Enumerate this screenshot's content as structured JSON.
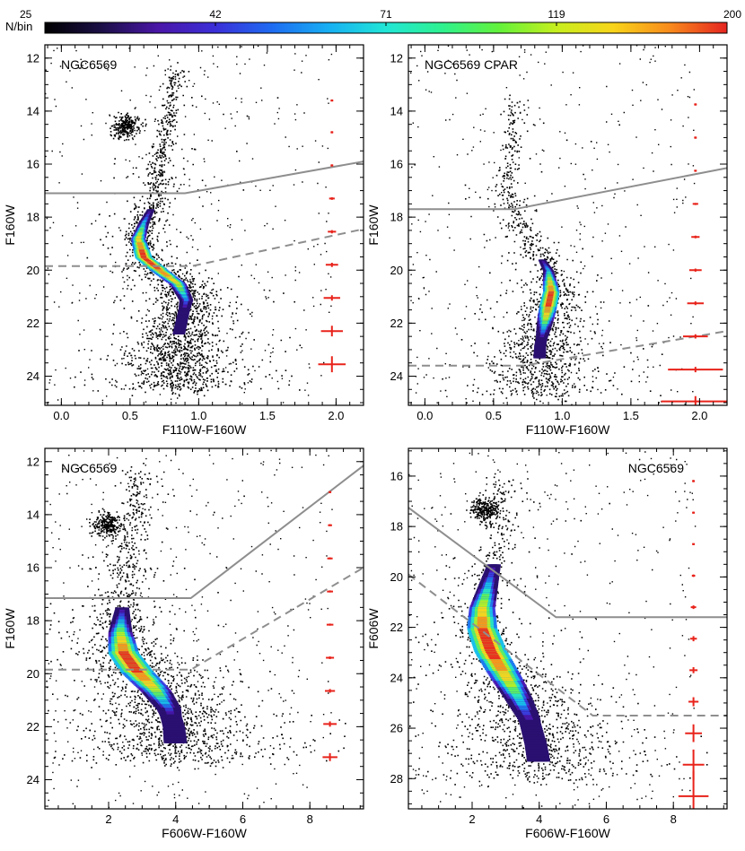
{
  "colorbar": {
    "label": "N/bin",
    "ticks": [
      "25",
      "42",
      "71",
      "119",
      "200"
    ],
    "stops": [
      "#000000",
      "#1b0f46",
      "#4a16a8",
      "#3b2fd8",
      "#1e6cf2",
      "#17b0f3",
      "#21e6d6",
      "#2ef28e",
      "#64f23a",
      "#c7ef1e",
      "#f8d41a",
      "#f88a1c",
      "#e52420"
    ]
  },
  "colors": {
    "points": "#000000",
    "solid_line": "#8e8e8e",
    "dashed_line": "#8e8e8e",
    "error_bars": "#e8231b"
  },
  "chart_data": [
    {
      "type": "scatter",
      "title": "NGC6569",
      "xlabel": "F110W-F160W",
      "ylabel": "F160W",
      "xlim": [
        -0.12,
        2.2
      ],
      "ylim": [
        25.1,
        11.5
      ],
      "xticks": [
        0.0,
        0.5,
        1.0,
        1.5,
        2.0
      ],
      "xtick_labels": [
        "0.0",
        "0.5",
        "1.0",
        "1.5",
        "2.0"
      ],
      "yticks": [
        12,
        14,
        16,
        18,
        20,
        22,
        24
      ],
      "ytick_labels": [
        "12",
        "14",
        "16",
        "18",
        "20",
        "22",
        "24"
      ],
      "ridge": [
        [
          0.84,
          12.4
        ],
        [
          0.8,
          13.5
        ],
        [
          0.75,
          14.9
        ],
        [
          0.72,
          15.8
        ],
        [
          0.7,
          16.8
        ],
        [
          0.66,
          17.6
        ],
        [
          0.6,
          18.2
        ],
        [
          0.56,
          18.8
        ],
        [
          0.6,
          19.5
        ],
        [
          0.72,
          20.0
        ],
        [
          0.85,
          20.5
        ],
        [
          0.91,
          21.1
        ],
        [
          0.88,
          21.8
        ],
        [
          0.85,
          22.5
        ],
        [
          0.84,
          23.5
        ],
        [
          0.85,
          24.5
        ]
      ],
      "density_band": [
        17.7,
        22.4
      ],
      "clump": [
        0.47,
        14.55
      ],
      "solid_line": [
        [
          -0.12,
          17.1
        ],
        [
          0.9,
          17.1
        ],
        [
          2.2,
          15.9
        ]
      ],
      "dashed_line": [
        [
          -0.12,
          19.85
        ],
        [
          0.95,
          19.85
        ],
        [
          2.2,
          18.45
        ]
      ],
      "errors": {
        "x": 1.97,
        "y": [
          13.6,
          14.8,
          16.05,
          17.3,
          18.55,
          19.8,
          21.05,
          22.3,
          23.55
        ],
        "xerr": [
          0.004,
          0.006,
          0.01,
          0.02,
          0.03,
          0.045,
          0.06,
          0.08,
          0.1
        ],
        "yerr": [
          0.02,
          0.02,
          0.03,
          0.05,
          0.06,
          0.08,
          0.1,
          0.2,
          0.3
        ]
      }
    },
    {
      "type": "scatter",
      "title": "NGC6569 CPAR",
      "xlabel": "F110W-F160W",
      "ylabel": "F160W",
      "xlim": [
        -0.12,
        2.2
      ],
      "ylim": [
        25.1,
        11.5
      ],
      "xticks": [
        0.0,
        0.5,
        1.0,
        1.5,
        2.0
      ],
      "xtick_labels": [
        "0.0",
        "0.5",
        "1.0",
        "1.5",
        "2.0"
      ],
      "yticks": [
        12,
        14,
        16,
        18,
        20,
        22,
        24
      ],
      "ytick_labels": [
        "12",
        "14",
        "16",
        "18",
        "20",
        "22",
        "24"
      ],
      "ridge": [
        [
          0.66,
          13.5
        ],
        [
          0.63,
          15.2
        ],
        [
          0.6,
          16.8
        ],
        [
          0.63,
          17.6
        ],
        [
          0.72,
          18.5
        ],
        [
          0.82,
          19.3
        ],
        [
          0.9,
          20.0
        ],
        [
          0.92,
          20.8
        ],
        [
          0.88,
          21.8
        ],
        [
          0.84,
          22.8
        ],
        [
          0.83,
          23.8
        ],
        [
          0.83,
          24.7
        ]
      ],
      "density_band": [
        19.6,
        23.3
      ],
      "clump": null,
      "solid_line": [
        [
          -0.12,
          17.7
        ],
        [
          0.65,
          17.7
        ],
        [
          2.2,
          16.15
        ]
      ],
      "dashed_line": [
        [
          -0.12,
          23.6
        ],
        [
          0.72,
          23.6
        ],
        [
          2.2,
          22.3
        ]
      ],
      "errors": {
        "x": 1.97,
        "y": [
          13.75,
          15.0,
          16.25,
          17.5,
          18.75,
          20.0,
          21.25,
          22.5,
          23.75,
          24.95
        ],
        "xerr": [
          0.004,
          0.006,
          0.01,
          0.02,
          0.03,
          0.045,
          0.06,
          0.09,
          0.2,
          0.25
        ],
        "yerr": [
          0.02,
          0.02,
          0.03,
          0.04,
          0.05,
          0.06,
          0.07,
          0.08,
          0.1,
          0.2
        ]
      }
    },
    {
      "type": "scatter",
      "title": "NGC6569",
      "xlabel": "F606W-F160W",
      "ylabel": "F160W",
      "xlim": [
        0.1,
        9.6
      ],
      "ylim": [
        25.1,
        11.5
      ],
      "xticks": [
        2,
        4,
        6,
        8
      ],
      "xtick_labels": [
        "2",
        "4",
        "6",
        "8"
      ],
      "yticks": [
        12,
        14,
        16,
        18,
        20,
        22,
        24
      ],
      "ytick_labels": [
        "12",
        "14",
        "16",
        "18",
        "20",
        "22",
        "24"
      ],
      "ridge": [
        [
          3.0,
          12.3
        ],
        [
          2.8,
          13.8
        ],
        [
          2.6,
          15.2
        ],
        [
          2.5,
          16.4
        ],
        [
          2.4,
          17.6
        ],
        [
          2.35,
          18.4
        ],
        [
          2.45,
          19.2
        ],
        [
          2.85,
          19.9
        ],
        [
          3.4,
          20.6
        ],
        [
          3.8,
          21.3
        ],
        [
          3.95,
          22.0
        ],
        [
          4.0,
          22.7
        ],
        [
          4.0,
          23.3
        ]
      ],
      "density_band": [
        17.5,
        22.6
      ],
      "clump": [
        1.95,
        14.35
      ],
      "solid_line": [
        [
          0.1,
          17.15
        ],
        [
          4.45,
          17.15
        ],
        [
          9.6,
          12.15
        ]
      ],
      "dashed_line": [
        [
          0.1,
          19.85
        ],
        [
          4.45,
          19.85
        ],
        [
          9.6,
          16.0
        ]
      ],
      "errors": {
        "x": 8.6,
        "y": [
          13.15,
          14.4,
          15.65,
          16.9,
          18.15,
          19.4,
          20.65,
          21.9,
          23.15
        ],
        "xerr": [
          0.02,
          0.06,
          0.08,
          0.09,
          0.1,
          0.12,
          0.15,
          0.2,
          0.22
        ],
        "yerr": [
          0.02,
          0.02,
          0.02,
          0.03,
          0.04,
          0.05,
          0.07,
          0.1,
          0.15
        ]
      }
    },
    {
      "type": "scatter",
      "title": "NGC6569",
      "xlabel": "F606W-F160W",
      "ylabel": "F606W",
      "xlim": [
        0.1,
        9.6
      ],
      "ylim": [
        29.2,
        14.9
      ],
      "xticks": [
        2,
        4,
        6,
        8
      ],
      "xtick_labels": [
        "2",
        "4",
        "6",
        "8"
      ],
      "yticks": [
        16,
        18,
        20,
        22,
        24,
        26,
        28
      ],
      "ytick_labels": [
        "16",
        "18",
        "20",
        "22",
        "24",
        "26",
        "28"
      ],
      "ridge": [
        [
          3.0,
          16.0
        ],
        [
          2.9,
          17.5
        ],
        [
          2.75,
          19.0
        ],
        [
          2.5,
          20.2
        ],
        [
          2.3,
          21.2
        ],
        [
          2.3,
          22.0
        ],
        [
          2.55,
          22.9
        ],
        [
          2.95,
          23.8
        ],
        [
          3.35,
          24.7
        ],
        [
          3.7,
          25.6
        ],
        [
          3.9,
          26.6
        ],
        [
          4.0,
          27.4
        ],
        [
          4.0,
          28.0
        ]
      ],
      "density_band": [
        19.5,
        27.3
      ],
      "clump": [
        2.35,
        17.3
      ],
      "solid_line": [
        [
          0.1,
          17.25
        ],
        [
          4.5,
          21.6
        ],
        [
          9.6,
          21.6
        ]
      ],
      "dashed_line": [
        [
          0.1,
          19.9
        ],
        [
          5.6,
          25.5
        ],
        [
          9.6,
          25.5
        ]
      ],
      "errors": {
        "x": 8.6,
        "y": [
          16.2,
          17.45,
          18.7,
          19.95,
          21.2,
          22.45,
          23.7,
          24.95,
          26.2,
          27.45,
          28.7
        ],
        "xerr": [
          0.02,
          0.03,
          0.04,
          0.05,
          0.08,
          0.1,
          0.12,
          0.15,
          0.25,
          0.32,
          0.45
        ],
        "yerr": [
          0.02,
          0.02,
          0.03,
          0.05,
          0.07,
          0.1,
          0.12,
          0.18,
          0.35,
          0.6,
          1.0
        ]
      }
    }
  ]
}
